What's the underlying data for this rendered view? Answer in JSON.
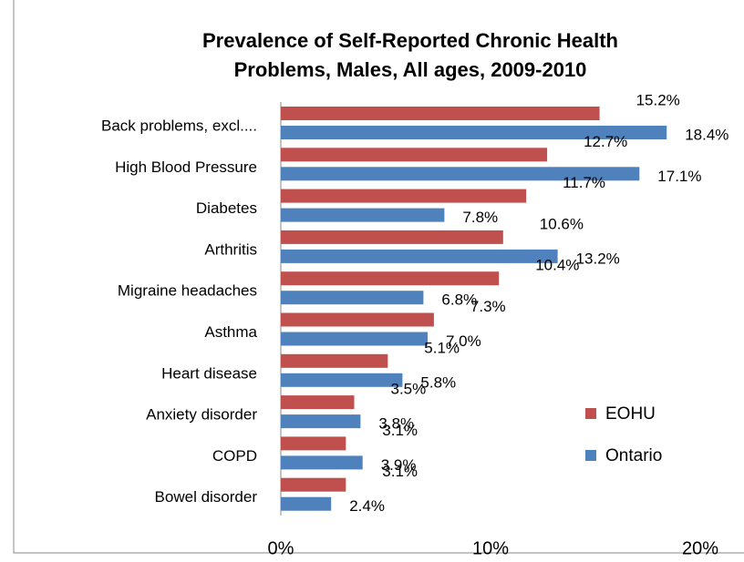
{
  "chart_data": {
    "type": "bar",
    "orientation": "horizontal",
    "title": "Prevalence of Self-Reported Chronic Health Problems, Males, All ages, 2009-2010",
    "categories": [
      "Back problems, excl....",
      "High Blood Pressure",
      "Diabetes",
      "Arthritis",
      "Migraine headaches",
      "Asthma",
      "Heart disease",
      "Anxiety disorder",
      "COPD",
      "Bowel disorder"
    ],
    "series": [
      {
        "name": "EOHU",
        "color": "#c0504d",
        "values": [
          15.2,
          12.7,
          11.7,
          10.6,
          10.4,
          7.3,
          5.1,
          3.5,
          3.1,
          3.1
        ],
        "value_labels": [
          "15.2%",
          "12.7%",
          "11.7%",
          "10.6%",
          "10.4%",
          "7.3%",
          "5.1%",
          "3.5%",
          "3.1%",
          "3.1%"
        ]
      },
      {
        "name": "Ontario",
        "color": "#4f81bd",
        "values": [
          18.4,
          17.1,
          7.8,
          13.2,
          6.8,
          7.0,
          5.8,
          3.8,
          3.9,
          2.4
        ],
        "value_labels": [
          "18.4%",
          "17.1%",
          "7.8%",
          "13.2%",
          "6.8%",
          "7.0%",
          "5.8%",
          "3.8%",
          "3.9%",
          "2.4%"
        ]
      }
    ],
    "xlim": [
      0,
      20
    ],
    "xticks": [
      {
        "value": 0,
        "label": "0%"
      },
      {
        "value": 10,
        "label": "10%"
      },
      {
        "value": 20,
        "label": "20%"
      }
    ],
    "grid": false,
    "legend": "right"
  }
}
